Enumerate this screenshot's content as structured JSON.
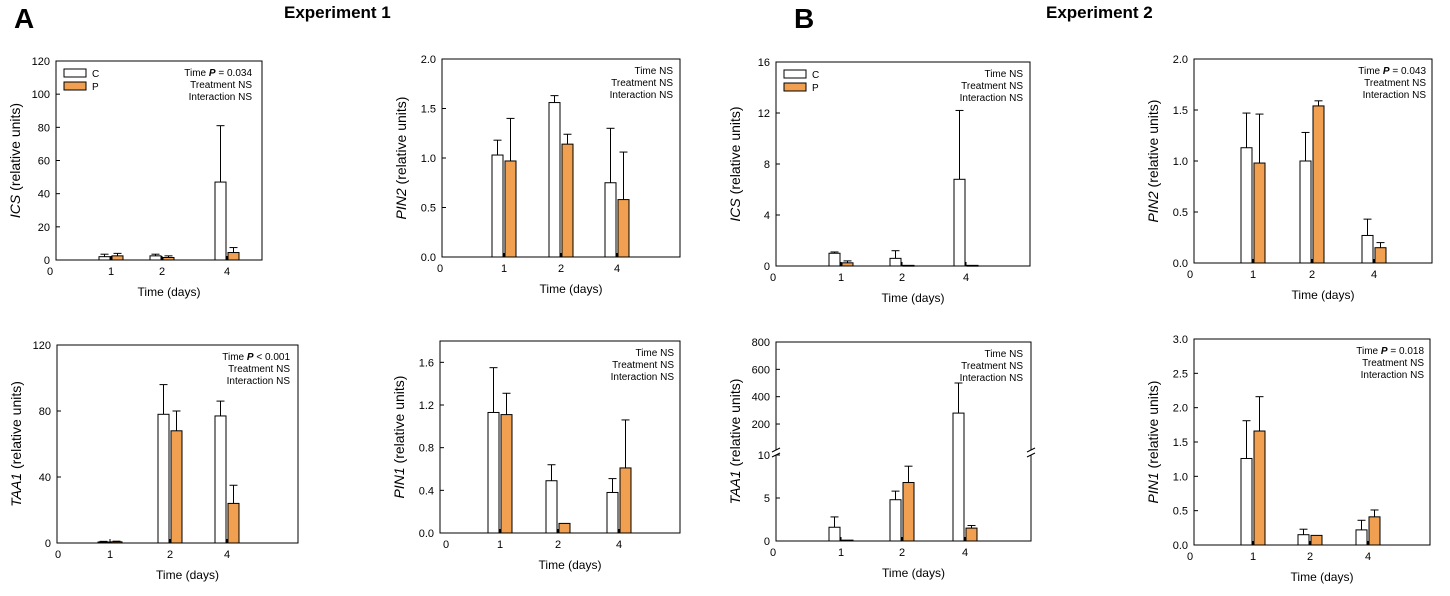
{
  "figure": {
    "panel_a": "A",
    "panel_b": "B",
    "experiment_1_title": "Experiment 1",
    "experiment_2_title": "Experiment 2"
  },
  "colors": {
    "control": "#ffffff",
    "treatment": "#f0a050",
    "axis": "#000000"
  },
  "chart_data": [
    {
      "id": "exp1-ics",
      "type": "bar",
      "experiment": "Experiment 1",
      "gene": "ICS",
      "ylabel_rest": " (relative units)",
      "xlabel": "Time (days)",
      "categories": [
        "1",
        "2",
        "4"
      ],
      "series": [
        {
          "name": "C",
          "values": [
            2,
            2.5,
            47
          ],
          "errors": [
            1.5,
            1,
            34
          ]
        },
        {
          "name": "P",
          "values": [
            2.5,
            1.5,
            4.5
          ],
          "errors": [
            1.5,
            1,
            3
          ]
        }
      ],
      "ylim": [
        0,
        120
      ],
      "yticks": [
        "0",
        "20",
        "40",
        "60",
        "80",
        "100",
        "120"
      ],
      "xzero": "0",
      "stats": [
        {
          "prefix": "Time ",
          "p": "P",
          "suffix": " = 0.034"
        },
        {
          "prefix": "Treatment NS",
          "p": "",
          "suffix": ""
        },
        {
          "prefix": "Interaction NS",
          "p": "",
          "suffix": ""
        }
      ],
      "legend": [
        "C",
        "P"
      ]
    },
    {
      "id": "exp1-pin2",
      "type": "bar",
      "experiment": "Experiment 1",
      "gene": "PIN2",
      "ylabel_rest": " (relative units)",
      "xlabel": "Time (days)",
      "categories": [
        "1",
        "2",
        "4"
      ],
      "series": [
        {
          "name": "C",
          "values": [
            1.03,
            1.56,
            0.75
          ],
          "errors": [
            0.15,
            0.07,
            0.55
          ]
        },
        {
          "name": "P",
          "values": [
            0.97,
            1.14,
            0.58
          ],
          "errors": [
            0.43,
            0.1,
            0.48
          ]
        }
      ],
      "ylim": [
        0,
        2.0
      ],
      "yticks": [
        "0.0",
        "0.5",
        "1.0",
        "1.5",
        "2.0"
      ],
      "xzero": "0",
      "stats": [
        {
          "prefix": "Time NS",
          "p": "",
          "suffix": ""
        },
        {
          "prefix": "Treatment NS",
          "p": "",
          "suffix": ""
        },
        {
          "prefix": "Interaction NS",
          "p": "",
          "suffix": ""
        }
      ],
      "legend": []
    },
    {
      "id": "exp1-taa1",
      "type": "bar",
      "experiment": "Experiment 1",
      "gene": "TAA1",
      "ylabel_rest": " (relative units)",
      "xlabel": "Time (days)",
      "categories": [
        "1",
        "2",
        "4"
      ],
      "series": [
        {
          "name": "C",
          "values": [
            0.6,
            78,
            77
          ],
          "errors": [
            0.4,
            18,
            9
          ]
        },
        {
          "name": "P",
          "values": [
            0.7,
            68,
            24
          ],
          "errors": [
            0.4,
            12,
            11
          ]
        }
      ],
      "ylim": [
        0,
        120
      ],
      "yticks": [
        "0",
        "40",
        "80",
        "120"
      ],
      "xzero": "0",
      "stats": [
        {
          "prefix": "Time ",
          "p": "P",
          "suffix": " < 0.001"
        },
        {
          "prefix": "Treatment NS",
          "p": "",
          "suffix": ""
        },
        {
          "prefix": "Interaction NS",
          "p": "",
          "suffix": ""
        }
      ],
      "legend": []
    },
    {
      "id": "exp1-pin1",
      "type": "bar",
      "experiment": "Experiment 1",
      "gene": "PIN1",
      "ylabel_rest": " (relative units)",
      "xlabel": "Time (days)",
      "categories": [
        "1",
        "2",
        "4"
      ],
      "series": [
        {
          "name": "C",
          "values": [
            1.13,
            0.49,
            0.38
          ],
          "errors": [
            0.42,
            0.15,
            0.13
          ]
        },
        {
          "name": "P",
          "values": [
            1.11,
            0.09,
            0.61
          ],
          "errors": [
            0.2,
            0,
            0.45
          ]
        }
      ],
      "ylim": [
        0,
        1.8
      ],
      "yticks": [
        "0.0",
        "0.4",
        "0.8",
        "1.2",
        "1.6"
      ],
      "xzero": "0",
      "stats": [
        {
          "prefix": "Time NS",
          "p": "",
          "suffix": ""
        },
        {
          "prefix": "Treatment NS",
          "p": "",
          "suffix": ""
        },
        {
          "prefix": "Interaction NS",
          "p": "",
          "suffix": ""
        }
      ],
      "legend": []
    },
    {
      "id": "exp2-ics",
      "type": "bar",
      "experiment": "Experiment 2",
      "gene": "ICS",
      "ylabel_rest": " (relative units)",
      "xlabel": "Time (days)",
      "categories": [
        "1",
        "2",
        "4"
      ],
      "series": [
        {
          "name": "C",
          "values": [
            1.0,
            0.6,
            6.8
          ],
          "errors": [
            0.1,
            0.6,
            5.4
          ]
        },
        {
          "name": "P",
          "values": [
            0.25,
            0.05,
            0.05
          ],
          "errors": [
            0.15,
            0,
            0
          ]
        }
      ],
      "ylim": [
        0,
        16
      ],
      "yticks": [
        "0",
        "4",
        "8",
        "12",
        "16"
      ],
      "xzero": "0",
      "stats": [
        {
          "prefix": "Time NS",
          "p": "",
          "suffix": ""
        },
        {
          "prefix": "Treatment NS",
          "p": "",
          "suffix": ""
        },
        {
          "prefix": "Interaction NS",
          "p": "",
          "suffix": ""
        }
      ],
      "legend": [
        "C",
        "P"
      ]
    },
    {
      "id": "exp2-pin2",
      "type": "bar",
      "experiment": "Experiment 2",
      "gene": "PIN2",
      "ylabel_rest": " (relative units)",
      "xlabel": "Time (days)",
      "categories": [
        "1",
        "2",
        "4"
      ],
      "series": [
        {
          "name": "C",
          "values": [
            1.13,
            1.0,
            0.27
          ],
          "errors": [
            0.34,
            0.28,
            0.16
          ]
        },
        {
          "name": "P",
          "values": [
            0.98,
            1.54,
            0.15
          ],
          "errors": [
            0.48,
            0.05,
            0.05
          ]
        }
      ],
      "ylim": [
        0,
        2.0
      ],
      "yticks": [
        "0.0",
        "0.5",
        "1.0",
        "1.5",
        "2.0"
      ],
      "xzero": "0",
      "stats": [
        {
          "prefix": "Time ",
          "p": "P",
          "suffix": " = 0.043"
        },
        {
          "prefix": "Treatment NS",
          "p": "",
          "suffix": ""
        },
        {
          "prefix": "Interaction NS",
          "p": "",
          "suffix": ""
        }
      ],
      "legend": []
    },
    {
      "id": "exp2-taa1",
      "type": "bar",
      "experiment": "Experiment 2",
      "gene": "TAA1",
      "ylabel_rest": " (relative units)",
      "xlabel": "Time (days)",
      "categories": [
        "1",
        "2",
        "4"
      ],
      "series": [
        {
          "name": "C",
          "values": [
            1.6,
            4.8,
            280
          ],
          "errors": [
            1.2,
            1.0,
            220
          ]
        },
        {
          "name": "P",
          "values": [
            0.1,
            6.8,
            1.5
          ],
          "errors": [
            0,
            1.9,
            0.3
          ]
        }
      ],
      "broken_axis": {
        "lower": [
          0,
          10
        ],
        "upper": [
          10,
          800
        ]
      },
      "yticks": [
        "0",
        "5",
        "10",
        "200",
        "400",
        "600",
        "800"
      ],
      "xzero": "0",
      "stats": [
        {
          "prefix": "Time NS",
          "p": "",
          "suffix": ""
        },
        {
          "prefix": "Treatment NS",
          "p": "",
          "suffix": ""
        },
        {
          "prefix": "Interaction NS",
          "p": "",
          "suffix": ""
        }
      ],
      "legend": []
    },
    {
      "id": "exp2-pin1",
      "type": "bar",
      "experiment": "Experiment 2",
      "gene": "PIN1",
      "ylabel_rest": " (relative units)",
      "xlabel": "Time (days)",
      "categories": [
        "1",
        "2",
        "4"
      ],
      "series": [
        {
          "name": "C",
          "values": [
            1.26,
            0.15,
            0.22
          ],
          "errors": [
            0.55,
            0.08,
            0.14
          ]
        },
        {
          "name": "P",
          "values": [
            1.66,
            0.14,
            0.41
          ],
          "errors": [
            0.5,
            0,
            0.1
          ]
        }
      ],
      "ylim": [
        0,
        3.0
      ],
      "yticks": [
        "0.0",
        "0.5",
        "1.0",
        "1.5",
        "2.0",
        "2.5",
        "3.0"
      ],
      "xzero": "0",
      "stats": [
        {
          "prefix": "Time ",
          "p": "P",
          "suffix": " = 0.018"
        },
        {
          "prefix": "Treatment NS",
          "p": "",
          "suffix": ""
        },
        {
          "prefix": "Interaction NS",
          "p": "",
          "suffix": ""
        }
      ],
      "legend": []
    }
  ]
}
